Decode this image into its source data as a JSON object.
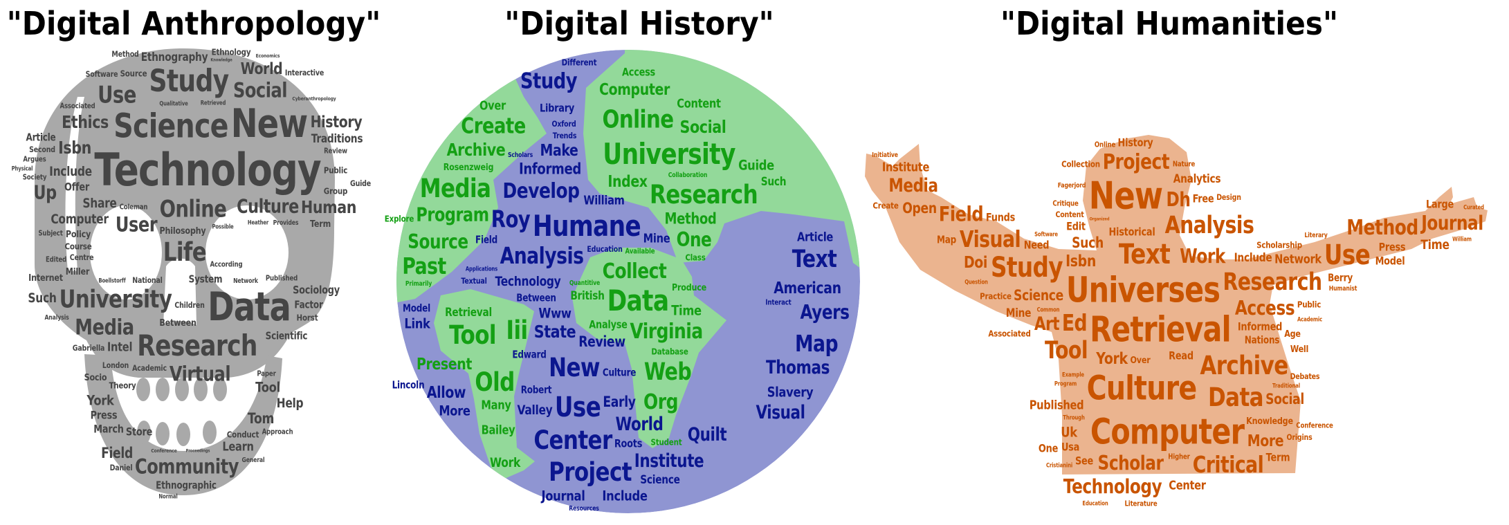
{
  "colors": {
    "anthropology_shape": "#a9a9a9",
    "anthropology_text": "#454545",
    "history_ocean": "#8f95d2",
    "history_land": "#93d99a",
    "history_ocean_text": "#0b168f",
    "history_land_text": "#14a014",
    "humanities_shape": "#ebb48f",
    "humanities_text": "#c95400"
  },
  "clouds": [
    {
      "title": "\"Digital Anthropology\"",
      "shape": "skull",
      "words": [
        "Source",
        "Ethnology",
        "Knowledge",
        "Method",
        "Interactive",
        "Software",
        "Economics",
        "Study",
        "Use",
        "World",
        "Ethnography",
        "Social",
        "Associated",
        "Qualitative",
        "Retrieved",
        "Ethics",
        "Science",
        "Cyberanthropology",
        "New",
        "Article",
        "Second",
        "Include",
        "Isbn",
        "History",
        "Review",
        "Traditions",
        "Argues",
        "Technology",
        "Physical",
        "Offer",
        "Public",
        "Society",
        "Share",
        "Guide",
        "Up",
        "Computer",
        "Online",
        "Culture",
        "Heather",
        "Group",
        "Coleman",
        "Human",
        "Policy",
        "Possible",
        "User",
        "Provides",
        "Term",
        "Subject",
        "Philosophy",
        "Course",
        "Centre",
        "Life",
        "Edited",
        "Miller",
        "According",
        "Internet",
        "National",
        "System",
        "Published",
        "Network",
        "Boellstorff",
        "Such",
        "University",
        "Sociology",
        "Data",
        "Factor",
        "Analysis",
        "Media",
        "Horst",
        "Gabriella",
        "Children",
        "Between",
        "Scientific",
        "Intel",
        "Research",
        "Academic",
        "London",
        "Virtual",
        "Socio",
        "Paper",
        "Theory",
        "Tool",
        "York",
        "Help",
        "Press",
        "Tom",
        "March",
        "Approach",
        "Store",
        "Conduct",
        "Field",
        "Learn",
        "Conference",
        "Proceedings",
        "General",
        "Daniel",
        "Community",
        "Ethnographic",
        "Normal"
      ]
    },
    {
      "title": "\"Digital History\"",
      "shape": "globe",
      "words": [
        "Different",
        "Study",
        "Access",
        "Computer",
        "Library",
        "Over",
        "Content",
        "Create",
        "Online",
        "Social",
        "Oxford",
        "Trends",
        "Collaboration",
        "Archive",
        "Make",
        "University",
        "Such",
        "Rosenzweig",
        "Informed",
        "Index",
        "Guide",
        "Media",
        "Develop",
        "Research",
        "Program",
        "Scholars",
        "William",
        "Roy",
        "Humane",
        "Method",
        "Explore",
        "Field",
        "Source",
        "Mine",
        "One",
        "Education",
        "Analysis",
        "Class",
        "Article",
        "Past",
        "Applications",
        "Available",
        "Collect",
        "Text",
        "Primarily",
        "Textual",
        "Technology",
        "American",
        "Quantitive",
        "Produce",
        "Between",
        "Data",
        "Interact",
        "Ayers",
        "British",
        "Model",
        "Retrieval",
        "Www",
        "Time",
        "Link",
        "Analyse",
        "Tool",
        "Iii",
        "State",
        "Virginia",
        "Map",
        "Edward",
        "Review",
        "Database",
        "Present",
        "New",
        "Thomas",
        "Culture",
        "Web",
        "Lincoln",
        "Old",
        "Robert",
        "World",
        "Allow",
        "Slavery",
        "Org",
        "Many",
        "Valley",
        "Use",
        "More",
        "Visual",
        "Early",
        "Bailey",
        "Student",
        "Quilt",
        "Center",
        "Roots",
        "Work",
        "Institute",
        "Project",
        "Science",
        "Journal",
        "Include",
        "Resources"
      ]
    },
    {
      "title": "\"Digital Humanities\"",
      "shape": "person-with-raised-arms",
      "words": [
        "Online",
        "History",
        "Initiative",
        "Project",
        "Institute",
        "Collection",
        "Analytics",
        "Fagerjord",
        "Media",
        "New",
        "Free",
        "Create",
        "Open",
        "Dh",
        "Organized",
        "Critique",
        "Nature",
        "Analysis",
        "Field",
        "Funds",
        "Map",
        "Historical",
        "Design",
        "Visual",
        "Content",
        "Need",
        "Text",
        "Software",
        "Doi",
        "Study",
        "Isbn",
        "Such",
        "Edit",
        "Scholarship",
        "Question",
        "Practice",
        "Work",
        "Include",
        "Network",
        "Humanist",
        "Literary",
        "Use",
        "Method",
        "Press",
        "Journal",
        "Large",
        "Curated",
        "Time",
        "William",
        "Model",
        "Berry",
        "Research",
        "Universes",
        "Science",
        "Academic",
        "Public",
        "Access",
        "Mine",
        "Common",
        "Associated",
        "Informed",
        "Nations",
        "Ed",
        "Retrieval",
        "Age",
        "Art",
        "Well",
        "Example",
        "Read",
        "Debates",
        "York",
        "Tool",
        "Archive",
        "Program",
        "Over",
        "Traditional",
        "Social",
        "Culture",
        "Data",
        "Published",
        "Conference",
        "Scholar",
        "Knowledge",
        "Through",
        "Usa",
        "Uk",
        "See",
        "Computer",
        "Origins",
        "More",
        "One",
        "Literature",
        "Higher",
        "Term",
        "Technology",
        "Center",
        "Critical",
        "Cristianini",
        "Education"
      ]
    }
  ]
}
